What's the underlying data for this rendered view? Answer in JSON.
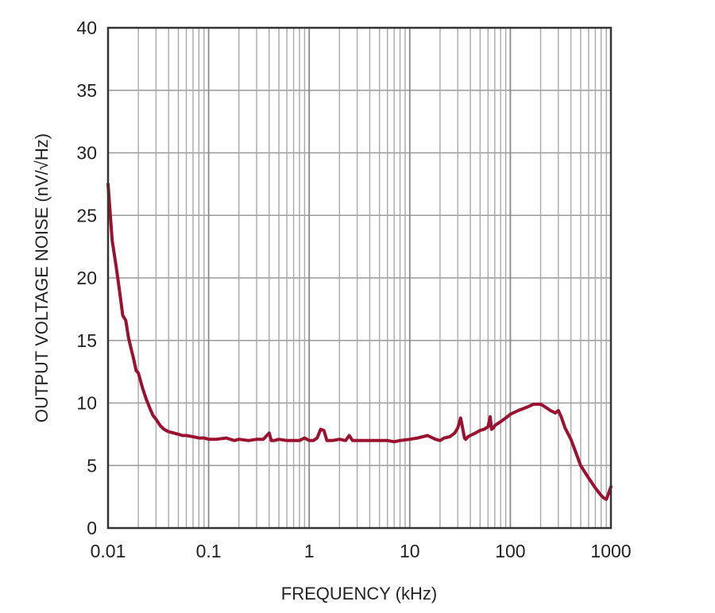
{
  "chart_data": {
    "type": "line",
    "title": "",
    "xlabel": "FREQUENCY (kHz)",
    "ylabel": "OUTPUT VOLTAGE NOISE (nV/√Hz)",
    "x_scale": "log",
    "xlim": [
      0.01,
      1000
    ],
    "ylim": [
      0,
      40
    ],
    "x_ticks": [
      0.01,
      0.1,
      1,
      10,
      100,
      1000
    ],
    "x_tick_labels": [
      "0.01",
      "0.1",
      "1",
      "10",
      "100",
      "1000"
    ],
    "y_ticks": [
      0,
      5,
      10,
      15,
      20,
      25,
      30,
      35,
      40
    ],
    "y_tick_labels": [
      "0",
      "5",
      "10",
      "15",
      "20",
      "25",
      "30",
      "35",
      "40"
    ],
    "grid": true,
    "line_color": "#9b1230",
    "series": [
      {
        "x": [
          0.01,
          0.011,
          0.012,
          0.013,
          0.014,
          0.015,
          0.016,
          0.017,
          0.018,
          0.019,
          0.02,
          0.022,
          0.024,
          0.026,
          0.028,
          0.03,
          0.033,
          0.036,
          0.04,
          0.045,
          0.05,
          0.055,
          0.06,
          0.07,
          0.08,
          0.09,
          0.1,
          0.12,
          0.15,
          0.18,
          0.2,
          0.25,
          0.3,
          0.35,
          0.4,
          0.42,
          0.45,
          0.5,
          0.6,
          0.7,
          0.8,
          0.9,
          1.0,
          1.1,
          1.2,
          1.3,
          1.4,
          1.5,
          1.7,
          2.0,
          2.3,
          2.5,
          2.7,
          3.0,
          4.0,
          5.0,
          6.0,
          7.0,
          8.0,
          10,
          12,
          15,
          18,
          20,
          22,
          25,
          28,
          30,
          32,
          33,
          35,
          36,
          38,
          40,
          45,
          50,
          55,
          60,
          63,
          65,
          68,
          70,
          80,
          90,
          100,
          120,
          150,
          170,
          200,
          220,
          250,
          280,
          300,
          320,
          350,
          400,
          450,
          500,
          600,
          700,
          800,
          850,
          900,
          950,
          1000
        ],
        "y": [
          27.5,
          23.0,
          21.0,
          19.0,
          17.0,
          16.6,
          15.2,
          14.3,
          13.5,
          12.6,
          12.4,
          11.2,
          10.3,
          9.6,
          9.0,
          8.7,
          8.2,
          7.9,
          7.7,
          7.6,
          7.5,
          7.4,
          7.4,
          7.3,
          7.2,
          7.2,
          7.1,
          7.1,
          7.2,
          7.0,
          7.1,
          7.0,
          7.1,
          7.1,
          7.6,
          7.0,
          7.0,
          7.1,
          7.0,
          7.0,
          7.0,
          7.2,
          7.0,
          7.0,
          7.2,
          7.9,
          7.8,
          7.0,
          7.0,
          7.1,
          7.0,
          7.4,
          7.0,
          7.0,
          7.0,
          7.0,
          7.0,
          6.9,
          7.0,
          7.1,
          7.2,
          7.4,
          7.1,
          7.0,
          7.2,
          7.3,
          7.6,
          8.0,
          8.8,
          8.3,
          7.2,
          7.1,
          7.3,
          7.4,
          7.6,
          7.8,
          7.9,
          8.1,
          8.9,
          7.9,
          8.0,
          8.2,
          8.5,
          8.8,
          9.1,
          9.4,
          9.7,
          9.9,
          9.9,
          9.7,
          9.4,
          9.2,
          9.4,
          8.9,
          8.0,
          7.1,
          6.0,
          5.0,
          4.0,
          3.2,
          2.6,
          2.4,
          2.3,
          2.8,
          3.3
        ]
      }
    ]
  }
}
